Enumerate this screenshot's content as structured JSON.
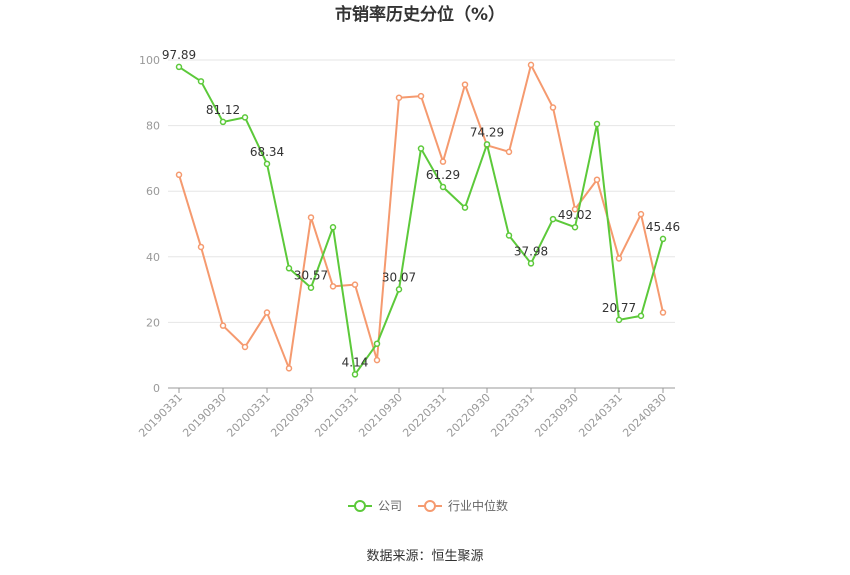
{
  "chart_data": {
    "type": "line",
    "title": "市销率历史分位（%）",
    "xlabel": "",
    "ylabel": "",
    "ylim": [
      0,
      100
    ],
    "yticks": [
      0,
      20,
      40,
      60,
      80,
      100
    ],
    "x": [
      "20190331",
      "20190630",
      "20190930",
      "20191231",
      "20200331",
      "20200630",
      "20200930",
      "20201231",
      "20210331",
      "20210630",
      "20210930",
      "20211231",
      "20220331",
      "20220630",
      "20220930",
      "20221231",
      "20230331",
      "20230630",
      "20230930",
      "20231231",
      "20240331",
      "20240630",
      "20240830"
    ],
    "xtick_labels": [
      "20190331",
      "20190930",
      "20200331",
      "20200930",
      "20210331",
      "20210930",
      "20220331",
      "20220930",
      "20230331",
      "20230930",
      "20240331",
      "20240830"
    ],
    "xtick_indices": [
      0,
      2,
      4,
      6,
      8,
      10,
      12,
      14,
      16,
      18,
      20,
      22
    ],
    "grid": true,
    "legend_position": "bottom",
    "series": [
      {
        "name": "公司",
        "color": "#5cc93a",
        "values": [
          97.89,
          93.5,
          81.12,
          82.5,
          68.34,
          36.5,
          30.57,
          49.0,
          4.14,
          13.5,
          30.07,
          73.0,
          61.29,
          55.0,
          74.29,
          46.5,
          37.98,
          51.5,
          49.02,
          80.5,
          20.77,
          22.0,
          45.46
        ],
        "data_labels": [
          {
            "index": 0,
            "text": "97.89"
          },
          {
            "index": 2,
            "text": "81.12"
          },
          {
            "index": 4,
            "text": "68.34"
          },
          {
            "index": 6,
            "text": "30.57"
          },
          {
            "index": 8,
            "text": "4.14"
          },
          {
            "index": 10,
            "text": "30.07"
          },
          {
            "index": 12,
            "text": "61.29"
          },
          {
            "index": 14,
            "text": "74.29"
          },
          {
            "index": 16,
            "text": "37.98"
          },
          {
            "index": 18,
            "text": "49.02"
          },
          {
            "index": 20,
            "text": "20.77"
          },
          {
            "index": 22,
            "text": "45.46"
          }
        ]
      },
      {
        "name": "行业中位数",
        "color": "#f59a6f",
        "values": [
          65.0,
          43.0,
          19.0,
          12.5,
          23.0,
          6.0,
          52.0,
          31.0,
          31.5,
          8.5,
          88.5,
          89.0,
          69.0,
          92.5,
          74.0,
          72.0,
          98.5,
          85.5,
          54.5,
          63.5,
          39.5,
          53.0,
          23.0
        ]
      }
    ]
  },
  "source_text": "数据来源：恒生聚源"
}
